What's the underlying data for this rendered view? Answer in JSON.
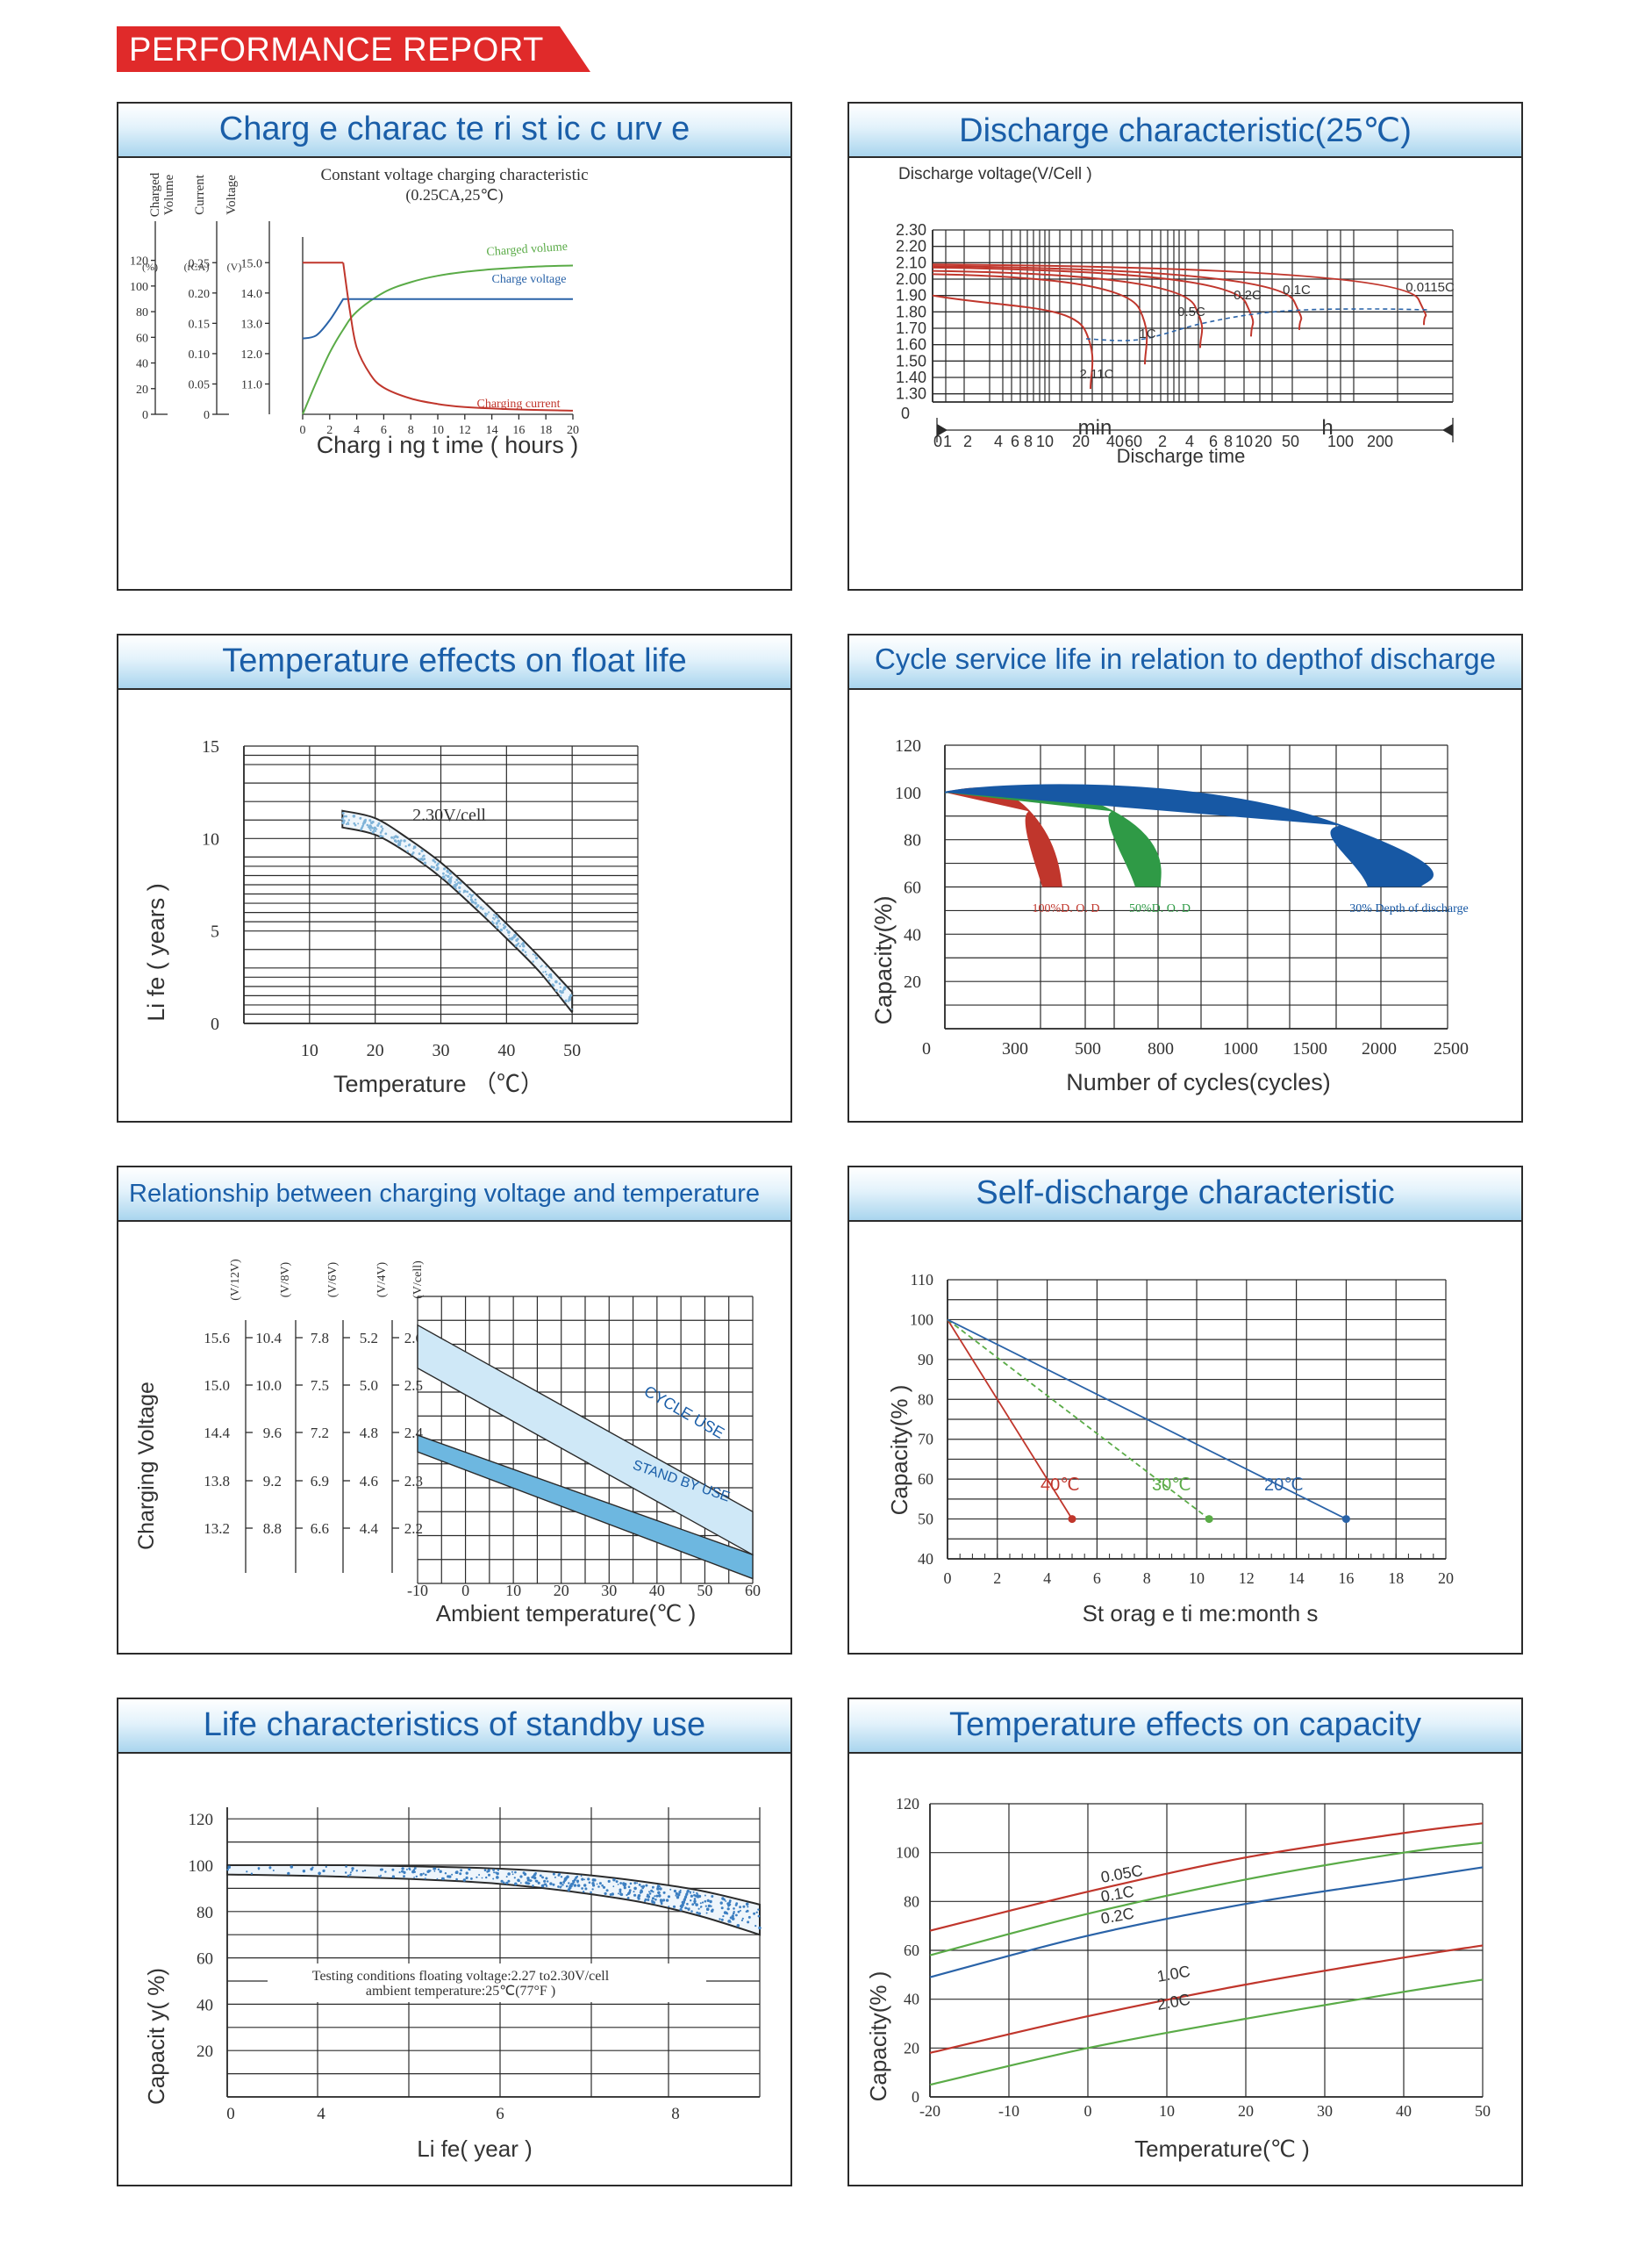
{
  "header": {
    "title": "PERFORMANCE REPORT"
  },
  "colors": {
    "red": "#c0362c",
    "green": "#5aab47",
    "blue": "#2a63a8",
    "grid": "#2b2b2b",
    "title_blue": "#1a5ea8",
    "banner_red": "#e02a2a"
  },
  "chart_data": [
    {
      "id": "charge",
      "panel_title": "Charg e  charac te ri  st ic c  urv e",
      "type": "line",
      "title": "Constant voltage charging characteristic",
      "subtitle": "(0.25CA,25℃)",
      "xlabel": "Charg i ng  t ime ( hours )",
      "axis_labels": [
        "Charged Volume",
        "Current",
        "Voltage"
      ],
      "axis_units": [
        "(%)",
        "(rCA)",
        "(V)"
      ],
      "xticks": [
        "0",
        "2",
        "4",
        "6",
        "8",
        "10",
        "12",
        "14",
        "16",
        "18",
        "20"
      ],
      "yticks_volume": [
        "0",
        "20",
        "40",
        "60",
        "80",
        "100",
        "120"
      ],
      "yticks_current": [
        "0",
        "0.05",
        "0.10",
        "0.15",
        "0.20",
        "0.25"
      ],
      "yticks_voltage": [
        "11.0",
        "12.0",
        "13.0",
        "14.0",
        "15.0"
      ],
      "series_labels": [
        "Charged volume",
        "Charge voltage",
        "Charging current"
      ],
      "series": [
        {
          "name": "Charged volume",
          "x": [
            0,
            1,
            2,
            3,
            4,
            6,
            8,
            10,
            12,
            14,
            16,
            18,
            20
          ],
          "y": [
            0,
            25,
            48,
            66,
            80,
            95,
            103,
            108,
            111,
            113,
            114.5,
            115.5,
            116
          ]
        },
        {
          "name": "Charge voltage",
          "x": [
            0,
            1,
            2,
            3,
            4,
            8,
            12,
            16,
            20
          ],
          "y": [
            12.5,
            12.6,
            13.1,
            13.8,
            13.8,
            13.8,
            13.8,
            13.8,
            13.8
          ]
        },
        {
          "name": "Charging current",
          "x": [
            0,
            2,
            3,
            3.5,
            4,
            5,
            6,
            8,
            10,
            12,
            16,
            20
          ],
          "y": [
            0.25,
            0.25,
            0.25,
            0.17,
            0.11,
            0.066,
            0.044,
            0.026,
            0.017,
            0.012,
            0.008,
            0.006
          ]
        }
      ],
      "xlim": [
        0,
        20
      ],
      "ylim_volume": [
        0,
        130
      ],
      "ylim_current": [
        0,
        0.275
      ],
      "ylim_voltage": [
        10.0,
        15.5
      ]
    },
    {
      "id": "discharge",
      "panel_title": "Discharge characteristic(25℃)",
      "type": "line",
      "ylabel": "Discharge voltage(V/Cell )",
      "yticks": [
        "0",
        "1.30",
        "1.40",
        "1.50",
        "1.60",
        "1.70",
        "1.80",
        "1.90",
        "2.00",
        "2.10",
        "2.20",
        "2.30"
      ],
      "xticks_min": [
        "0",
        "1",
        "2",
        "4",
        "6",
        "8",
        "10",
        "20",
        "40",
        "60"
      ],
      "xticks_h": [
        "2",
        "4",
        "6",
        "8",
        "10",
        "20",
        "50",
        "100",
        "200"
      ],
      "unit_min": "min",
      "unit_h": "h",
      "xlabel": "Discharge time",
      "curve_labels": [
        "2.11C",
        "1C",
        "0.5C",
        "0.2C",
        "0.1C",
        "0.0115C"
      ],
      "curves": [
        {
          "label": "2.11C",
          "start": 1.9,
          "end_min": 7
        },
        {
          "label": "1C",
          "start": 2.03,
          "end_min": 28
        },
        {
          "label": "0.5C",
          "start": 2.05,
          "end_min": 72
        },
        {
          "label": "0.2C",
          "start": 2.07,
          "end_min": 180
        },
        {
          "label": "0.1C",
          "start": 2.08,
          "end_min": 420
        },
        {
          "label": "0.0115C",
          "start": 2.09,
          "end_min": 5400
        }
      ]
    },
    {
      "id": "float_life",
      "panel_title": "Temperature effects      on float life",
      "type": "area",
      "xlabel": "Temperature （℃）",
      "ylabel": "Li fe ( years )",
      "xticks": [
        "10",
        "20",
        "30",
        "40",
        "50"
      ],
      "yticks": [
        "0",
        "5",
        "10",
        "15"
      ],
      "series_label": "2.30V/cell",
      "band": {
        "x": [
          15,
          20,
          25,
          30,
          35,
          40,
          45,
          50
        ],
        "upper": [
          11.5,
          11.1,
          10.0,
          8.7,
          7.1,
          5.4,
          3.6,
          1.7
        ],
        "lower": [
          10.6,
          10.2,
          9.2,
          7.9,
          6.3,
          4.6,
          2.8,
          0.6
        ]
      },
      "xlim": [
        0,
        60
      ],
      "ylim": [
        0,
        15
      ]
    },
    {
      "id": "cycle_life",
      "panel_title": "Cycle  service   life   in relation    to  depthof  discharge",
      "type": "line",
      "xlabel": "Number of cycles(cycles)",
      "ylabel": "Capacity(%)",
      "xticks": [
        "0",
        "300",
        "500",
        "800",
        "1000",
        "1500",
        "2000",
        "2500"
      ],
      "yticks": [
        "20",
        "40",
        "60",
        "80",
        "100",
        "120"
      ],
      "series": [
        {
          "name": "100%D. O. D",
          "peak_cycles": 150,
          "end_cycles": 340
        },
        {
          "name": "50%D. O. D",
          "peak_cycles": 300,
          "end_cycles": 700
        },
        {
          "name": "30% Depth of discharge",
          "peak_cycles": 700,
          "end_cycles": 2030
        }
      ],
      "ylim": [
        0,
        120
      ]
    },
    {
      "id": "charging_voltage",
      "panel_title": "Relationship between charging voltage and temperature",
      "type": "area",
      "xlabel": "Ambient temperature(℃    )",
      "ylabel": "Charging Voltage",
      "scale_units": [
        "(V/12V)",
        "(V/8V)",
        "(V/6V)",
        "(V/4V)",
        "(V/cell)"
      ],
      "scales": [
        [
          "15.6",
          "15.0",
          "14.4",
          "13.8",
          "13.2"
        ],
        [
          "10.4",
          "10.0",
          "9.6",
          "9.2",
          "8.8"
        ],
        [
          "7.8",
          "7.5",
          "7.2",
          "6.9",
          "6.6"
        ],
        [
          "5.2",
          "5.0",
          "4.8",
          "4.6",
          "4.4"
        ],
        [
          "2.6",
          "2.5",
          "2.4",
          "2.3",
          "2.2"
        ]
      ],
      "xticks": [
        "-10",
        "0",
        "10",
        "20",
        "30",
        "40",
        "50",
        "60"
      ],
      "bands": [
        {
          "name": "CYCLE USE",
          "upper": [
            2.64,
            2.25
          ],
          "lower": [
            2.55,
            2.16
          ]
        },
        {
          "name": "STAND BY USE",
          "upper": [
            2.41,
            2.16
          ],
          "lower": [
            2.375,
            2.11
          ]
        }
      ],
      "xlim": [
        -10,
        60
      ],
      "ylim": [
        2.1,
        2.7
      ]
    },
    {
      "id": "self_discharge",
      "panel_title": "Self-discharge characteristic",
      "type": "line",
      "xlabel": "St orag e ti   me:month s",
      "ylabel": "Capacity(% )",
      "xticks": [
        "0",
        "2",
        "4",
        "6",
        "8",
        "10",
        "12",
        "14",
        "16",
        "18",
        "20"
      ],
      "yticks": [
        "40",
        "50",
        "60",
        "70",
        "80",
        "90",
        "100",
        "110"
      ],
      "series": [
        {
          "name": "40℃",
          "x": [
            0,
            5
          ],
          "y": [
            100,
            50
          ]
        },
        {
          "name": "30℃",
          "x": [
            0,
            10.5
          ],
          "y": [
            100,
            50
          ]
        },
        {
          "name": "20℃",
          "x": [
            0,
            16
          ],
          "y": [
            100,
            50
          ]
        }
      ],
      "xlim": [
        0,
        20
      ],
      "ylim": [
        40,
        110
      ]
    },
    {
      "id": "standby_life",
      "panel_title": "Life characteristics of standby use",
      "type": "area",
      "xlabel": "Li fe( year )",
      "ylabel": "Capacit  y( %)",
      "xticks": [
        "0",
        "4",
        "6",
        "8"
      ],
      "yticks": [
        "20",
        "40",
        "60",
        "80",
        "100",
        "120"
      ],
      "note_line1": "Testing conditions floating voltage:2.27 to2.30V/cell",
      "note_line2": "ambient temperature:25℃(77°F       )",
      "band": {
        "x": [
          0,
          2,
          4,
          5,
          6,
          7,
          8,
          9
        ],
        "upper": [
          100,
          100,
          99,
          98,
          96,
          93,
          89,
          83
        ],
        "lower": [
          96,
          95,
          93,
          91,
          88,
          84,
          78,
          70
        ]
      },
      "xlim": [
        0,
        9
      ],
      "ylim": [
        0,
        125
      ]
    },
    {
      "id": "temp_capacity",
      "panel_title": "Temperature effects on capacity",
      "type": "line",
      "xlabel": "Temperature(℃    )",
      "ylabel": "Capacity(% )",
      "xticks": [
        "-20",
        "-10",
        "0",
        "10",
        "20",
        "30",
        "40",
        "50"
      ],
      "yticks": [
        "0",
        "20",
        "40",
        "60",
        "80",
        "100",
        "120"
      ],
      "series": [
        {
          "name": "0.05C",
          "x": [
            -20,
            0,
            20,
            40,
            50
          ],
          "y": [
            68,
            84,
            98,
            108,
            112
          ]
        },
        {
          "name": "0.1C",
          "x": [
            -20,
            0,
            20,
            40,
            50
          ],
          "y": [
            58,
            75,
            89,
            100,
            104
          ]
        },
        {
          "name": "0.2C",
          "x": [
            -20,
            0,
            20,
            40,
            50
          ],
          "y": [
            49,
            66,
            79,
            89,
            94
          ]
        },
        {
          "name": "1.0C",
          "x": [
            -20,
            0,
            20,
            40,
            50
          ],
          "y": [
            18,
            33,
            46,
            57,
            62
          ]
        },
        {
          "name": "2.0C",
          "x": [
            -20,
            0,
            20,
            40,
            50
          ],
          "y": [
            5,
            20,
            32,
            43,
            48
          ]
        }
      ],
      "xlim": [
        -20,
        50
      ],
      "ylim": [
        0,
        120
      ]
    }
  ]
}
